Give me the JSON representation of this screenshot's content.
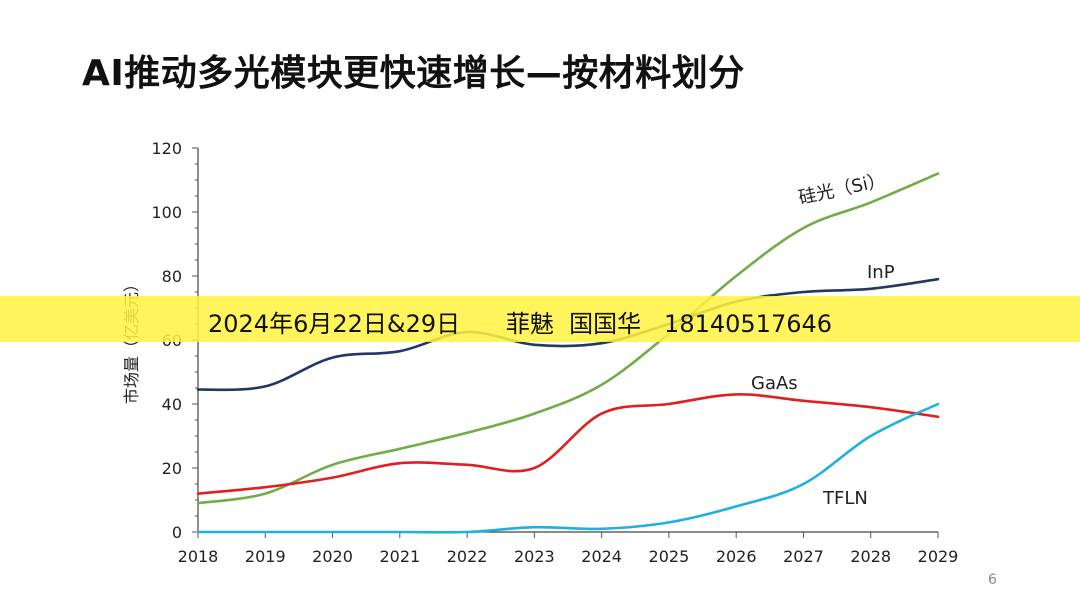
{
  "slide": {
    "title": "AI推动多光模块更快速增长—按材料划分",
    "watermark": "2024年6月22日&29日      菲魅  国国华   18140517646",
    "page_number": "6"
  },
  "chart_data": {
    "type": "line",
    "title": "",
    "xlabel": "",
    "ylabel": "市场量（亿美元）",
    "x": [
      2018,
      2019,
      2020,
      2021,
      2022,
      2023,
      2024,
      2025,
      2026,
      2027,
      2028,
      2029
    ],
    "xlim": [
      2018,
      2029
    ],
    "ylim": [
      0,
      120
    ],
    "yticks": [
      0,
      20,
      40,
      60,
      80,
      100,
      120
    ],
    "grid": false,
    "legend": "none",
    "series": [
      {
        "name": "硅光（Si）",
        "color": "#70ad47",
        "values": [
          9,
          12,
          21,
          26,
          31,
          37,
          46,
          62,
          80,
          95,
          103,
          112
        ]
      },
      {
        "name": "InP",
        "color": "#203864",
        "values": [
          44.5,
          45.5,
          54.5,
          56.5,
          62.5,
          58.5,
          59,
          65,
          72,
          75,
          76,
          79
        ]
      },
      {
        "name": "GaAs",
        "color": "#e02020",
        "values": [
          12,
          14,
          17,
          21.5,
          21,
          20,
          37,
          40,
          43,
          41,
          39,
          36
        ]
      },
      {
        "name": "TFLN",
        "color": "#20b0e0",
        "values": [
          0,
          0,
          0,
          0,
          0,
          1.5,
          1,
          3,
          8,
          15,
          30,
          40
        ]
      }
    ]
  }
}
